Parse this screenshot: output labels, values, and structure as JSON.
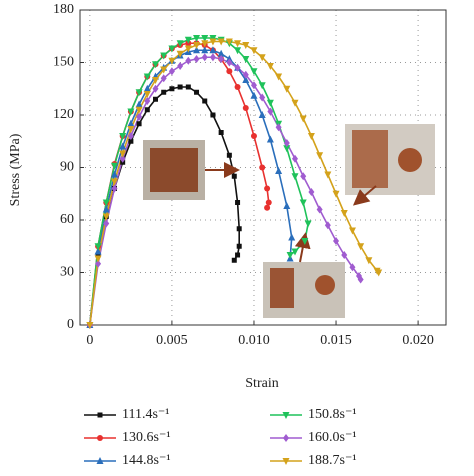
{
  "chart_data": {
    "type": "line",
    "xlabel": "Strain",
    "ylabel": "Stress (MPa)",
    "xlim": [
      -0.0006,
      0.0217
    ],
    "ylim": [
      0,
      180
    ],
    "xticks": [
      0,
      0.005,
      {
        "value": 0.01,
        "label": "0.010"
      },
      0.015,
      {
        "value": 0.02,
        "label": "0.020"
      }
    ],
    "yticks": [
      0,
      30,
      60,
      90,
      120,
      150,
      180
    ],
    "grid": true,
    "series": [
      {
        "name": "111.4s⁻¹",
        "color": "#111111",
        "marker": "square",
        "x": [
          0,
          0.0005,
          0.001,
          0.0015,
          0.002,
          0.0025,
          0.003,
          0.0035,
          0.004,
          0.0045,
          0.005,
          0.0055,
          0.006,
          0.0065,
          0.007,
          0.0075,
          0.008,
          0.0085,
          0.0088,
          0.009,
          0.0091,
          0.0091,
          0.009,
          0.0088
        ],
        "values": [
          0,
          40,
          62,
          78,
          93,
          105,
          115,
          123,
          129,
          133,
          135,
          136,
          136,
          133,
          128,
          120,
          110,
          97,
          85,
          70,
          55,
          45,
          40,
          37
        ]
      },
      {
        "name": "130.6s⁻¹",
        "color": "#e8312f",
        "marker": "circle",
        "x": [
          0,
          0.0005,
          0.001,
          0.0015,
          0.002,
          0.0025,
          0.003,
          0.0035,
          0.004,
          0.0045,
          0.005,
          0.0055,
          0.006,
          0.0065,
          0.007,
          0.0075,
          0.008,
          0.0085,
          0.009,
          0.0095,
          0.01,
          0.0105,
          0.0108,
          0.0109,
          0.0108
        ],
        "values": [
          0,
          45,
          70,
          92,
          108,
          122,
          133,
          142,
          149,
          154,
          158,
          160,
          161,
          161,
          160,
          157,
          152,
          145,
          136,
          124,
          108,
          90,
          78,
          70,
          67
        ]
      },
      {
        "name": "144.8s⁻¹",
        "color": "#2a6ebb",
        "marker": "triangle-up",
        "x": [
          0,
          0.0005,
          0.001,
          0.0015,
          0.002,
          0.0025,
          0.003,
          0.0035,
          0.004,
          0.0045,
          0.005,
          0.0055,
          0.006,
          0.0065,
          0.007,
          0.0075,
          0.008,
          0.0085,
          0.009,
          0.0095,
          0.01,
          0.0105,
          0.011,
          0.0115,
          0.012,
          0.0123,
          0.0122
        ],
        "values": [
          0,
          42,
          66,
          86,
          102,
          115,
          126,
          135,
          142,
          147,
          151,
          154,
          156,
          157,
          157,
          157,
          155,
          152,
          147,
          140,
          131,
          120,
          106,
          88,
          68,
          50,
          38
        ]
      },
      {
        "name": "150.8s⁻¹",
        "color": "#1fc25a",
        "marker": "triangle-down",
        "x": [
          0,
          0.0005,
          0.001,
          0.0015,
          0.002,
          0.0025,
          0.003,
          0.0035,
          0.004,
          0.0045,
          0.005,
          0.0055,
          0.006,
          0.0065,
          0.007,
          0.0075,
          0.008,
          0.0085,
          0.009,
          0.0095,
          0.01,
          0.0105,
          0.011,
          0.0115,
          0.012,
          0.0125,
          0.013,
          0.0133,
          0.0131,
          0.0125,
          0.0122
        ],
        "values": [
          0,
          45,
          70,
          91,
          108,
          122,
          133,
          142,
          149,
          154,
          158,
          161,
          163,
          164,
          164,
          164,
          163,
          161,
          157,
          152,
          145,
          137,
          127,
          115,
          101,
          85,
          70,
          58,
          48,
          42,
          40
        ]
      },
      {
        "name": "160.0s⁻¹",
        "color": "#a05cd0",
        "marker": "diamond",
        "x": [
          0,
          0.0005,
          0.001,
          0.0015,
          0.002,
          0.0025,
          0.003,
          0.0035,
          0.004,
          0.0045,
          0.005,
          0.0055,
          0.006,
          0.0065,
          0.007,
          0.0075,
          0.008,
          0.0085,
          0.009,
          0.0095,
          0.01,
          0.0105,
          0.011,
          0.0115,
          0.012,
          0.0125,
          0.013,
          0.0135,
          0.014,
          0.0145,
          0.015,
          0.0155,
          0.016,
          0.0164,
          0.0165
        ],
        "values": [
          0,
          35,
          58,
          78,
          95,
          108,
          119,
          128,
          135,
          141,
          145,
          148,
          151,
          152,
          153,
          153,
          152,
          150,
          147,
          143,
          137,
          130,
          122,
          113,
          104,
          95,
          85,
          76,
          66,
          57,
          48,
          40,
          33,
          28,
          26
        ]
      },
      {
        "name": "188.7s⁻¹",
        "color": "#d4a21b",
        "marker": "triangle-down",
        "x": [
          0,
          0.0005,
          0.001,
          0.0015,
          0.002,
          0.0025,
          0.003,
          0.0035,
          0.004,
          0.0045,
          0.005,
          0.0055,
          0.006,
          0.0065,
          0.007,
          0.0075,
          0.008,
          0.0085,
          0.009,
          0.0095,
          0.01,
          0.0105,
          0.011,
          0.0115,
          0.012,
          0.0125,
          0.013,
          0.0135,
          0.014,
          0.0145,
          0.015,
          0.0155,
          0.016,
          0.0165,
          0.017,
          0.0175,
          0.0176
        ],
        "values": [
          0,
          38,
          62,
          82,
          98,
          112,
          123,
          132,
          140,
          146,
          151,
          155,
          158,
          160,
          161,
          162,
          162,
          162,
          161,
          160,
          157,
          153,
          148,
          142,
          135,
          127,
          118,
          108,
          97,
          86,
          75,
          64,
          54,
          45,
          37,
          31,
          30
        ]
      }
    ]
  }
}
